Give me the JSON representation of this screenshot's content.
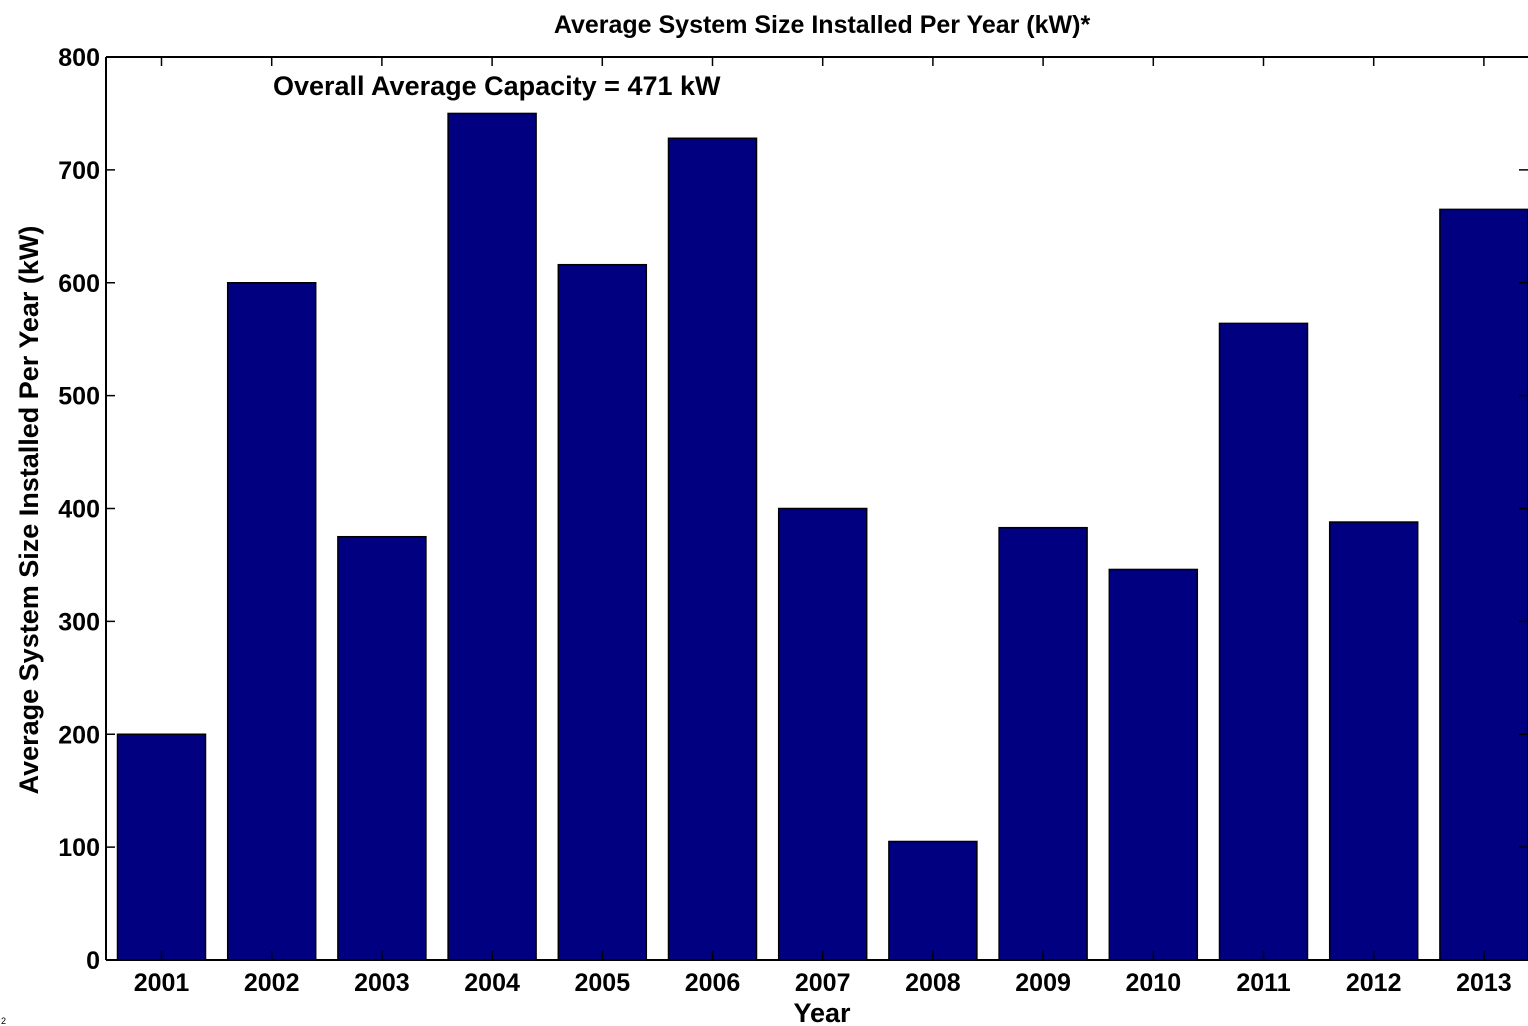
{
  "chart_data": {
    "type": "bar",
    "title": "Average System Size Installed Per Year (kW)*",
    "annotation": "Overall Average Capacity = 471 kW",
    "xlabel": "Year",
    "ylabel": "Average System Size Installed Per Year (kW)",
    "categories": [
      "2001",
      "2002",
      "2003",
      "2004",
      "2005",
      "2006",
      "2007",
      "2008",
      "2009",
      "2010",
      "2011",
      "2012",
      "2013"
    ],
    "values": [
      200,
      600,
      375,
      750,
      616,
      728,
      400,
      105,
      383,
      346,
      564,
      388,
      665
    ],
    "ylim": [
      0,
      800
    ],
    "yticks": [
      0,
      100,
      200,
      300,
      400,
      500,
      600,
      700,
      800
    ],
    "bar_color": "#000080",
    "grid": false
  },
  "stray_mark": "2"
}
